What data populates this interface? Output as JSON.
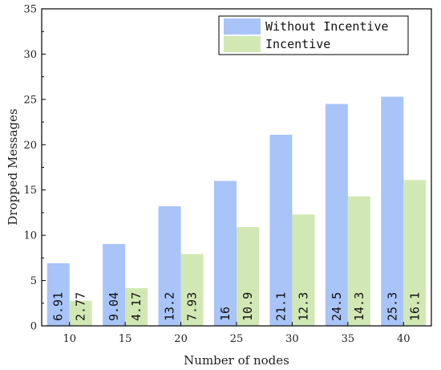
{
  "chart_data": {
    "type": "bar",
    "title": "",
    "xlabel": "Number of nodes",
    "ylabel": "Dropped Messages",
    "categories": [
      "10",
      "15",
      "20",
      "25",
      "30",
      "35",
      "40"
    ],
    "ylim": [
      0,
      35
    ],
    "yticks": [
      0,
      5,
      10,
      15,
      20,
      25,
      30,
      35
    ],
    "grid": false,
    "legend_position": "top-right",
    "series": [
      {
        "name": "Without Incentive",
        "color": "#a8c4f8",
        "values": [
          6.91,
          9.04,
          13.2,
          16,
          21.1,
          24.5,
          25.3
        ],
        "labels": [
          "6.91",
          "9.04",
          "13.2",
          "16",
          "21.1",
          "24.5",
          "25.3"
        ]
      },
      {
        "name": "Incentive",
        "color": "#d2e8b4",
        "values": [
          2.77,
          4.17,
          7.93,
          10.9,
          12.3,
          14.3,
          16.1
        ],
        "labels": [
          "2.77",
          "4.17",
          "7.93",
          "10.9",
          "12.3",
          "14.3",
          "16.1"
        ]
      }
    ]
  }
}
